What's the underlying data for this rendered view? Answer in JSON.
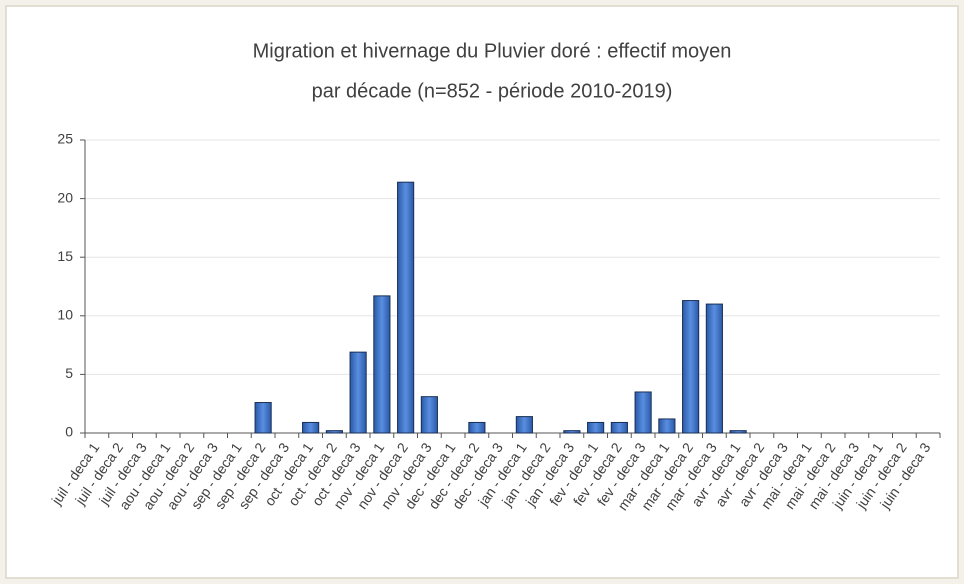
{
  "chart_data": {
    "type": "bar",
    "title": [
      "Migration et hivernage du Pluvier doré : effectif moyen",
      "par décade (n=852 - période 2010-2019)"
    ],
    "categories": [
      "juil - deca 1",
      "juil - deca 2",
      "juil - deca 3",
      "aou - deca 1",
      "aou - deca 2",
      "aou - deca 3",
      "sep - deca 1",
      "sep - deca 2",
      "sep - deca 3",
      "oct - deca 1",
      "oct - deca 2",
      "oct - deca 3",
      "nov - deca 1",
      "nov - deca 2",
      "nov - deca 3",
      "dec - deca 1",
      "dec - deca 2",
      "dec - deca 3",
      "jan - deca 1",
      "jan - deca 2",
      "jan - deca 3",
      "fev - deca 1",
      "fev - deca 2",
      "fev - deca 3",
      "mar - deca 1",
      "mar - deca 2",
      "mar - deca 3",
      "avr - deca 1",
      "avr - deca 2",
      "avr - deca 3",
      "mai - deca 1",
      "mai - deca 2",
      "mai - deca 3",
      "juin - deca 1",
      "juin - deca 2",
      "juin - deca 3"
    ],
    "values": [
      0,
      0,
      0,
      0,
      0,
      0,
      0,
      2.6,
      0,
      0.9,
      0.2,
      6.9,
      11.7,
      21.4,
      3.1,
      0,
      0.9,
      0,
      1.4,
      0,
      0.2,
      0.9,
      0.9,
      3.5,
      1.2,
      11.3,
      11.0,
      0.2,
      0,
      0,
      0,
      0,
      0,
      0,
      0,
      0
    ],
    "color": "#3f73c8",
    "ylim": [
      0,
      25
    ],
    "yticks": [
      0,
      5,
      10,
      15,
      20,
      25
    ],
    "grid": true
  }
}
